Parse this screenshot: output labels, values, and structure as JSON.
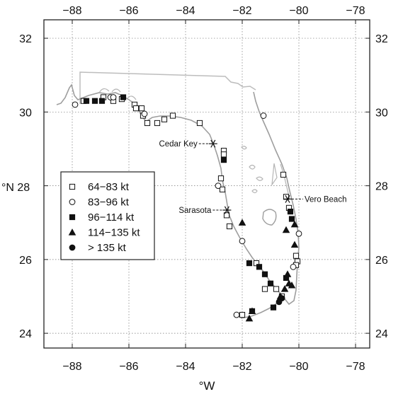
{
  "chart_data": {
    "type": "scatter",
    "title": "",
    "xlabel": "°W",
    "ylabel": "°N",
    "xlim": [
      -89,
      -77.5
    ],
    "ylim": [
      23.6,
      32.5
    ],
    "x_ticks": [
      -88,
      -86,
      -84,
      -82,
      -80,
      -78
    ],
    "y_ticks": [
      24,
      26,
      28,
      30,
      32
    ],
    "x_tick_labels": [
      "−88",
      "−86",
      "−84",
      "−82",
      "−80",
      "−78"
    ],
    "y_tick_labels": [
      "24",
      "26",
      "28",
      "30",
      "32"
    ],
    "y_label_28": "°N 28",
    "grid": true,
    "legend": {
      "placement": "center-left",
      "entries": [
        {
          "label": "64−83 kt",
          "marker": "open-square"
        },
        {
          "label": "83−96 kt",
          "marker": "open-circle"
        },
        {
          "label": "96−114 kt",
          "marker": "filled-square"
        },
        {
          "label": "114−135 kt",
          "marker": "filled-triangle"
        },
        {
          "label": "> 135 kt",
          "marker": "filled-circle"
        }
      ]
    },
    "cities": [
      {
        "name": "Cedar Key",
        "lon": -83.03,
        "lat": 29.14,
        "side": "left"
      },
      {
        "name": "Sarasota",
        "lon": -82.54,
        "lat": 27.34,
        "side": "left"
      },
      {
        "name": "Vero Beach",
        "lon": -80.4,
        "lat": 27.64,
        "side": "right"
      }
    ],
    "series": [
      {
        "marker": "open-square",
        "points": [
          [
            -87.6,
            30.3
          ],
          [
            -86.9,
            30.4
          ],
          [
            -86.55,
            30.3
          ],
          [
            -86.25,
            30.35
          ],
          [
            -85.8,
            30.2
          ],
          [
            -85.75,
            30.1
          ],
          [
            -85.55,
            30.1
          ],
          [
            -85.5,
            29.9
          ],
          [
            -85.35,
            29.7
          ],
          [
            -85.0,
            29.7
          ],
          [
            -84.75,
            29.8
          ],
          [
            -84.45,
            29.9
          ],
          [
            -83.5,
            29.7
          ],
          [
            -82.65,
            28.95
          ],
          [
            -82.65,
            28.85
          ],
          [
            -82.75,
            28.2
          ],
          [
            -82.7,
            27.9
          ],
          [
            -82.55,
            27.2
          ],
          [
            -82.45,
            26.9
          ],
          [
            -81.5,
            25.9
          ],
          [
            -81.2,
            25.2
          ],
          [
            -80.8,
            25.2
          ],
          [
            -80.6,
            25.0
          ],
          [
            -80.1,
            26.1
          ],
          [
            -80.05,
            25.95
          ],
          [
            -80.1,
            25.85
          ],
          [
            -80.55,
            28.3
          ],
          [
            -80.45,
            27.7
          ],
          [
            -80.35,
            27.4
          ],
          [
            -82.0,
            24.5
          ]
        ]
      },
      {
        "marker": "open-circle",
        "points": [
          [
            -87.9,
            30.2
          ],
          [
            -86.65,
            30.4
          ],
          [
            -86.55,
            30.4
          ],
          [
            -85.45,
            29.95
          ],
          [
            -82.85,
            28.0
          ],
          [
            -82.0,
            26.5
          ],
          [
            -81.25,
            29.9
          ],
          [
            -80.0,
            26.7
          ],
          [
            -80.2,
            25.8
          ],
          [
            -82.2,
            24.5
          ]
        ]
      },
      {
        "marker": "filled-square",
        "points": [
          [
            -87.5,
            30.3
          ],
          [
            -87.2,
            30.3
          ],
          [
            -86.95,
            30.3
          ],
          [
            -86.2,
            30.4
          ],
          [
            -82.65,
            28.7
          ],
          [
            -81.2,
            25.6
          ],
          [
            -81.0,
            25.35
          ],
          [
            -80.3,
            27.3
          ],
          [
            -80.25,
            27.1
          ],
          [
            -80.45,
            25.5
          ],
          [
            -80.9,
            24.7
          ],
          [
            -81.75,
            25.9
          ],
          [
            -81.4,
            25.8
          ],
          [
            -81.65,
            24.6
          ]
        ]
      },
      {
        "marker": "filled-triangle",
        "points": [
          [
            -82.0,
            27.0
          ],
          [
            -80.45,
            26.8
          ],
          [
            -80.15,
            26.95
          ],
          [
            -80.15,
            26.4
          ],
          [
            -80.4,
            25.6
          ],
          [
            -80.35,
            25.35
          ],
          [
            -80.25,
            25.3
          ],
          [
            -80.5,
            25.2
          ],
          [
            -80.65,
            25.0
          ],
          [
            -81.75,
            24.4
          ],
          [
            -81.65,
            24.6
          ]
        ]
      },
      {
        "marker": "filled-circle",
        "points": [
          [
            -80.6,
            24.95
          ],
          [
            -80.7,
            24.85
          ]
        ]
      }
    ]
  }
}
